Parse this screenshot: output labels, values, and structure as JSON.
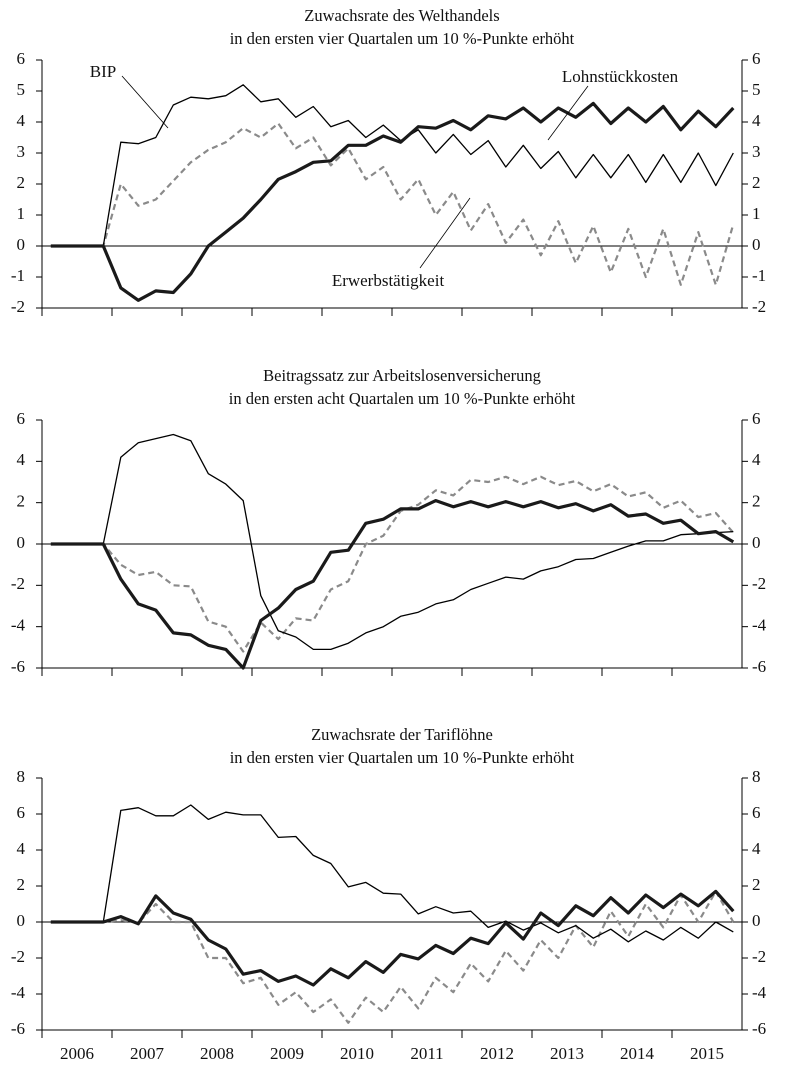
{
  "chart_data": [
    {
      "type": "line",
      "title": "Zuwachsrate des Welthandels",
      "subtitle": "in den ersten vier Quartalen um 10 %-Punkte erhöht",
      "x": [
        2006.125,
        2006.375,
        2006.625,
        2006.875,
        2007.125,
        2007.375,
        2007.625,
        2007.875,
        2008.125,
        2008.375,
        2008.625,
        2008.875,
        2009.125,
        2009.375,
        2009.625,
        2009.875,
        2010.125,
        2010.375,
        2010.625,
        2010.875,
        2011.125,
        2011.375,
        2011.625,
        2011.875,
        2012.125,
        2012.375,
        2012.625,
        2012.875,
        2013.125,
        2013.375,
        2013.625,
        2013.875,
        2014.125,
        2014.375,
        2014.625,
        2014.875,
        2015.125,
        2015.375,
        2015.625,
        2015.875
      ],
      "xlim": [
        2006,
        2016
      ],
      "ylim": [
        -2,
        6
      ],
      "yticks": [
        -2,
        -1,
        0,
        1,
        2,
        3,
        4,
        5,
        6
      ],
      "series": [
        {
          "name": "BIP",
          "color": "#000000",
          "values": [
            0,
            0,
            0,
            0,
            3.35,
            3.3,
            3.5,
            4.55,
            4.8,
            4.75,
            4.85,
            5.2,
            4.65,
            4.75,
            4.15,
            4.5,
            3.85,
            4.05,
            3.5,
            3.9,
            3.4,
            3.75,
            3.0,
            3.6,
            2.95,
            3.4,
            2.55,
            3.25,
            2.5,
            3.05,
            2.2,
            2.95,
            2.2,
            2.95,
            2.05,
            2.95,
            2.05,
            3.0,
            1.95,
            3.0
          ]
        },
        {
          "name": "Lohnstückkosten",
          "color": "#1a1a1a",
          "values": [
            0,
            0,
            0,
            0,
            -1.35,
            -1.75,
            -1.45,
            -1.5,
            -0.9,
            0.0,
            0.45,
            0.9,
            1.5,
            2.15,
            2.4,
            2.7,
            2.75,
            3.25,
            3.25,
            3.55,
            3.35,
            3.85,
            3.8,
            4.05,
            3.75,
            4.2,
            4.1,
            4.45,
            4.0,
            4.45,
            4.15,
            4.6,
            3.95,
            4.45,
            4.0,
            4.5,
            3.75,
            4.35,
            3.85,
            4.45
          ]
        },
        {
          "name": "Erwerbstätigkeit",
          "color": "#8a8a8a",
          "values": [
            0,
            0,
            0,
            0,
            2.0,
            1.3,
            1.5,
            2.1,
            2.7,
            3.1,
            3.35,
            3.8,
            3.5,
            3.95,
            3.15,
            3.5,
            2.6,
            3.15,
            2.15,
            2.55,
            1.5,
            2.15,
            1.0,
            1.75,
            0.5,
            1.35,
            0.1,
            0.85,
            -0.3,
            0.8,
            -0.55,
            0.65,
            -0.85,
            0.55,
            -1.0,
            0.55,
            -1.25,
            0.45,
            -1.25,
            0.7
          ]
        }
      ]
    },
    {
      "type": "line",
      "title": "Beitragssatz zur Arbeitslosenversicherung",
      "subtitle": "in den ersten acht Quartalen um 10 %-Punkte erhöht",
      "x": [
        2006.125,
        2006.375,
        2006.625,
        2006.875,
        2007.125,
        2007.375,
        2007.625,
        2007.875,
        2008.125,
        2008.375,
        2008.625,
        2008.875,
        2009.125,
        2009.375,
        2009.625,
        2009.875,
        2010.125,
        2010.375,
        2010.625,
        2010.875,
        2011.125,
        2011.375,
        2011.625,
        2011.875,
        2012.125,
        2012.375,
        2012.625,
        2012.875,
        2013.125,
        2013.375,
        2013.625,
        2013.875,
        2014.125,
        2014.375,
        2014.625,
        2014.875,
        2015.125,
        2015.375,
        2015.625,
        2015.875
      ],
      "xlim": [
        2006,
        2016
      ],
      "ylim": [
        -6,
        6
      ],
      "yticks": [
        -6,
        -4,
        -2,
        0,
        2,
        4,
        6
      ],
      "series": [
        {
          "color": "#000000",
          "values": [
            0,
            0,
            0,
            0,
            4.2,
            4.9,
            5.1,
            5.3,
            5.0,
            3.4,
            2.9,
            2.1,
            -2.5,
            -4.2,
            -4.5,
            -5.1,
            -5.1,
            -4.8,
            -4.3,
            -4.0,
            -3.5,
            -3.3,
            -2.9,
            -2.7,
            -2.2,
            -1.9,
            -1.6,
            -1.7,
            -1.3,
            -1.1,
            -0.75,
            -0.7,
            -0.4,
            -0.1,
            0.15,
            0.15,
            0.45,
            0.5,
            0.55,
            0.6
          ]
        },
        {
          "color": "#1a1a1a",
          "values": [
            0,
            0,
            0,
            0,
            -1.7,
            -2.9,
            -3.2,
            -4.3,
            -4.4,
            -4.9,
            -5.1,
            -6.0,
            -3.7,
            -3.1,
            -2.2,
            -1.8,
            -0.4,
            -0.3,
            1.0,
            1.2,
            1.7,
            1.7,
            2.1,
            1.8,
            2.05,
            1.8,
            2.05,
            1.8,
            2.05,
            1.75,
            1.95,
            1.6,
            1.9,
            1.35,
            1.45,
            1.0,
            1.15,
            0.5,
            0.6,
            0.1
          ]
        },
        {
          "color": "#8a8a8a",
          "values": [
            0,
            0,
            0,
            0,
            -1.0,
            -1.5,
            -1.35,
            -2.0,
            -2.05,
            -3.75,
            -4.0,
            -5.2,
            -3.8,
            -4.6,
            -3.6,
            -3.7,
            -2.2,
            -1.8,
            0.0,
            0.4,
            1.6,
            1.9,
            2.6,
            2.35,
            3.1,
            3.0,
            3.25,
            2.9,
            3.25,
            2.85,
            3.05,
            2.55,
            2.9,
            2.3,
            2.5,
            1.75,
            2.1,
            1.3,
            1.5,
            0.55
          ]
        }
      ]
    },
    {
      "type": "line",
      "title": "Zuwachsrate der Tariflöhne",
      "subtitle": "in den ersten vier Quartalen um 10 %-Punkte erhöht",
      "x": [
        2006.125,
        2006.375,
        2006.625,
        2006.875,
        2007.125,
        2007.375,
        2007.625,
        2007.875,
        2008.125,
        2008.375,
        2008.625,
        2008.875,
        2009.125,
        2009.375,
        2009.625,
        2009.875,
        2010.125,
        2010.375,
        2010.625,
        2010.875,
        2011.125,
        2011.375,
        2011.625,
        2011.875,
        2012.125,
        2012.375,
        2012.625,
        2012.875,
        2013.125,
        2013.375,
        2013.625,
        2013.875,
        2014.125,
        2014.375,
        2014.625,
        2014.875,
        2015.125,
        2015.375,
        2015.625,
        2015.875
      ],
      "xlim": [
        2006,
        2016
      ],
      "xticks": [
        2006,
        2007,
        2008,
        2009,
        2010,
        2011,
        2012,
        2013,
        2014,
        2015
      ],
      "ylim": [
        -6,
        8
      ],
      "yticks": [
        -6,
        -4,
        -2,
        0,
        2,
        4,
        6,
        8
      ],
      "series": [
        {
          "color": "#000000",
          "values": [
            0,
            0,
            0,
            0,
            6.2,
            6.35,
            5.9,
            5.9,
            6.5,
            5.7,
            6.1,
            5.95,
            5.95,
            4.7,
            4.75,
            3.7,
            3.25,
            1.95,
            2.2,
            1.6,
            1.55,
            0.45,
            0.85,
            0.5,
            0.6,
            -0.3,
            0.05,
            -0.45,
            -0.05,
            -0.6,
            -0.2,
            -0.9,
            -0.4,
            -1.1,
            -0.5,
            -1.0,
            -0.3,
            -0.9,
            0.0,
            -0.55
          ]
        },
        {
          "color": "#1a1a1a",
          "values": [
            0,
            0,
            0,
            0,
            0.3,
            -0.1,
            1.45,
            0.5,
            0.15,
            -1.0,
            -1.5,
            -2.9,
            -2.7,
            -3.3,
            -3.0,
            -3.5,
            -2.6,
            -3.1,
            -2.2,
            -2.8,
            -1.8,
            -2.05,
            -1.3,
            -1.75,
            -0.9,
            -1.2,
            -0.05,
            -0.95,
            0.5,
            -0.2,
            0.9,
            0.35,
            1.35,
            0.5,
            1.5,
            0.8,
            1.55,
            0.9,
            1.7,
            0.6
          ]
        },
        {
          "color": "#8a8a8a",
          "values": [
            0,
            0,
            0,
            0,
            0.1,
            -0.05,
            1.0,
            0.0,
            0.0,
            -2.0,
            -2.0,
            -3.4,
            -3.1,
            -4.6,
            -3.9,
            -5.0,
            -4.3,
            -5.6,
            -4.2,
            -5.0,
            -3.6,
            -4.8,
            -3.1,
            -3.9,
            -2.3,
            -3.3,
            -1.6,
            -2.7,
            -1.0,
            -2.0,
            -0.2,
            -1.4,
            0.6,
            -0.8,
            1.0,
            -0.3,
            1.5,
            0.0,
            1.7,
            0.0
          ]
        }
      ]
    }
  ]
}
